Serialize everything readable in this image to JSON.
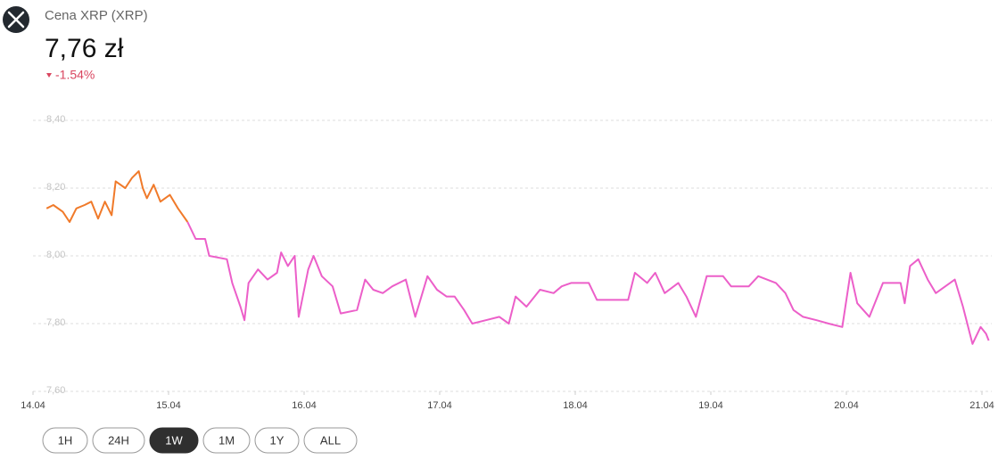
{
  "chart_data": {
    "type": "line",
    "title": "Cena XRP (XRP)",
    "price": "7,76 zł",
    "change": "-1.54%",
    "ylim": [
      7.6,
      8.4
    ],
    "yticks": [
      {
        "value": 8.4,
        "label": "8,40"
      },
      {
        "value": 8.2,
        "label": "8,20"
      },
      {
        "value": 8.0,
        "label": "8,00"
      },
      {
        "value": 7.8,
        "label": "7,80"
      },
      {
        "value": 7.6,
        "label": "7,60"
      }
    ],
    "xlim": [
      0,
      7.07
    ],
    "xticks": [
      {
        "value": 0,
        "label": "14.04"
      },
      {
        "value": 1,
        "label": "15.04"
      },
      {
        "value": 2,
        "label": "16.04"
      },
      {
        "value": 3,
        "label": "17.04"
      },
      {
        "value": 4,
        "label": "18.04"
      },
      {
        "value": 5,
        "label": "19.04"
      },
      {
        "value": 6,
        "label": "20.04"
      },
      {
        "value": 7,
        "label": "21.04"
      }
    ],
    "grid": true,
    "series": [
      {
        "color": "#f07a2a",
        "x": [
          0.1,
          0.15,
          0.22,
          0.27,
          0.32,
          0.38,
          0.43,
          0.48,
          0.53,
          0.58,
          0.61,
          0.68,
          0.73,
          0.78,
          0.81,
          0.84,
          0.89,
          0.94,
          1.01,
          1.07,
          1.14
        ],
        "values": [
          8.14,
          8.15,
          8.13,
          8.1,
          8.14,
          8.15,
          8.16,
          8.11,
          8.16,
          8.12,
          8.22,
          8.2,
          8.23,
          8.25,
          8.2,
          8.17,
          8.21,
          8.16,
          8.18,
          8.14,
          8.1
        ]
      },
      {
        "color": "#ec5fc9",
        "x": [
          1.14,
          1.2,
          1.27,
          1.3,
          1.43,
          1.47,
          1.53,
          1.56,
          1.59,
          1.66,
          1.73,
          1.8,
          1.83,
          1.88,
          1.93,
          1.96,
          2.03,
          2.07,
          2.13,
          2.21,
          2.27,
          2.39,
          2.45,
          2.51,
          2.58,
          2.65,
          2.75,
          2.82,
          2.85,
          2.91,
          2.98,
          3.05,
          3.11,
          3.18,
          3.24,
          3.34,
          3.44,
          3.51,
          3.56,
          3.64,
          3.74,
          3.84,
          3.9,
          3.97,
          4.1,
          4.16,
          4.39,
          4.44,
          4.53,
          4.59,
          4.66,
          4.76,
          4.82,
          4.89,
          4.97,
          5.09,
          5.15,
          5.28,
          5.35,
          5.48,
          5.55,
          5.61,
          5.68,
          5.78,
          5.87,
          5.97,
          6.03,
          6.08,
          6.17,
          6.27,
          6.4,
          6.43,
          6.47,
          6.53,
          6.6,
          6.66,
          6.8,
          6.86,
          6.93,
          6.99,
          7.03,
          7.05
        ],
        "values": [
          8.1,
          8.05,
          8.05,
          8.0,
          7.99,
          7.92,
          7.85,
          7.81,
          7.92,
          7.96,
          7.93,
          7.95,
          8.01,
          7.97,
          8.0,
          7.82,
          7.96,
          8.0,
          7.94,
          7.91,
          7.83,
          7.84,
          7.93,
          7.9,
          7.89,
          7.91,
          7.93,
          7.82,
          7.86,
          7.94,
          7.9,
          7.88,
          7.88,
          7.84,
          7.8,
          7.81,
          7.82,
          7.8,
          7.88,
          7.85,
          7.9,
          7.89,
          7.91,
          7.92,
          7.92,
          7.87,
          7.87,
          7.95,
          7.92,
          7.95,
          7.89,
          7.92,
          7.88,
          7.82,
          7.94,
          7.94,
          7.91,
          7.91,
          7.94,
          7.92,
          7.89,
          7.84,
          7.82,
          7.81,
          7.8,
          7.79,
          7.95,
          7.86,
          7.82,
          7.92,
          7.92,
          7.86,
          7.97,
          7.99,
          7.93,
          7.89,
          7.93,
          7.85,
          7.74,
          7.79,
          7.77,
          7.75
        ]
      }
    ],
    "range_buttons": [
      "1H",
      "24H",
      "1W",
      "1M",
      "1Y",
      "ALL"
    ],
    "selected_range": 2
  }
}
